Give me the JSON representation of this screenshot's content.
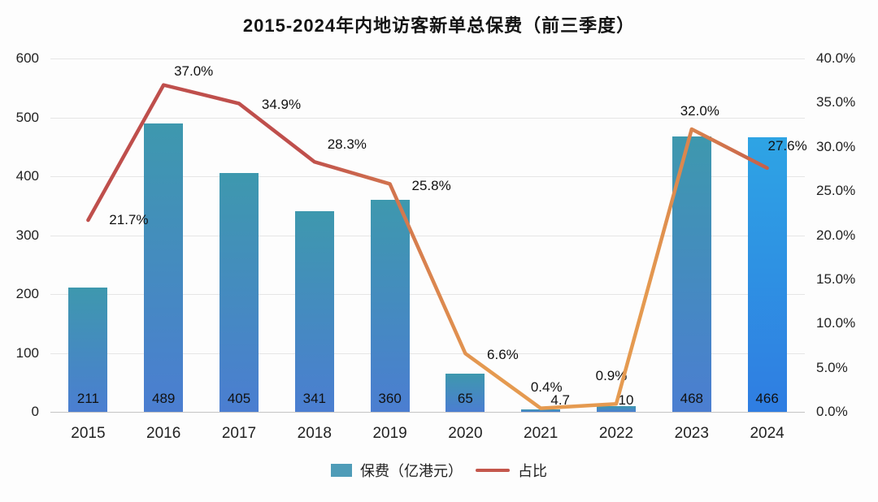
{
  "chart_data": {
    "type": "bar+line",
    "title": "2015-2024年内地访客新单总保费（前三季度）",
    "categories": [
      "2015",
      "2016",
      "2017",
      "2018",
      "2019",
      "2020",
      "2021",
      "2022",
      "2023",
      "2024"
    ],
    "series": [
      {
        "name": "保费（亿港元）",
        "type": "bar",
        "axis": "left",
        "values": [
          211,
          489,
          405,
          341,
          360,
          65,
          4.7,
          10,
          468,
          466
        ],
        "labels": [
          "211",
          "489",
          "405",
          "341",
          "360",
          "65",
          "4.7",
          "10",
          "468",
          "466"
        ]
      },
      {
        "name": "占比",
        "type": "line",
        "axis": "right",
        "values": [
          21.7,
          37.0,
          34.9,
          28.3,
          25.8,
          6.6,
          0.4,
          0.9,
          32.0,
          27.6
        ],
        "labels": [
          "21.7%",
          "37.0%",
          "34.9%",
          "28.3%",
          "25.8%",
          "6.6%",
          "0.4%",
          "0.9%",
          "32.0%",
          "27.6%"
        ]
      }
    ],
    "left_axis": {
      "min": 0,
      "max": 600,
      "step": 100,
      "ticks": [
        "600",
        "500",
        "400",
        "300",
        "200",
        "100",
        "0"
      ]
    },
    "right_axis": {
      "min": 0,
      "max": 40,
      "step": 5,
      "ticks": [
        "40.0%",
        "35.0%",
        "30.0%",
        "25.0%",
        "20.0%",
        "15.0%",
        "10.0%",
        "5.0%",
        "0.0%"
      ]
    },
    "grid": true,
    "legend_position": "bottom",
    "colors": {
      "bar_top": "#3e98ae",
      "bar_bottom": "#4b7ed1",
      "bar_2024_top": "#2ea4e4",
      "bar_2024_bottom": "#2f7de2",
      "line_start": "#bf4f4c",
      "line_mid": "#e59a50",
      "line_end": "#c65f4a",
      "legend_bar_swatch": "#4f9cb8",
      "legend_line_swatch": "#c4574c"
    }
  }
}
